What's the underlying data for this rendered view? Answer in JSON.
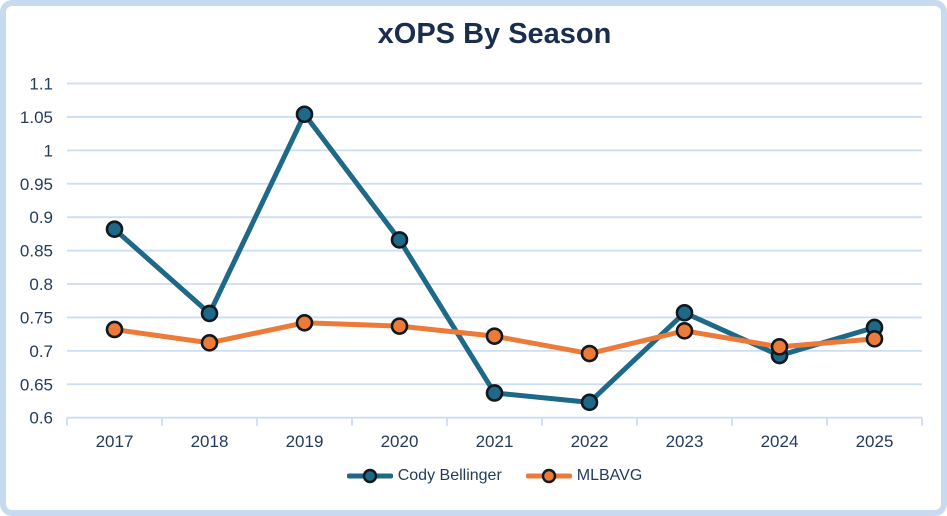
{
  "chart_data": {
    "type": "line",
    "title": "xOPS By Season",
    "categories": [
      "2017",
      "2018",
      "2019",
      "2020",
      "2021",
      "2022",
      "2023",
      "2024",
      "2025"
    ],
    "series": [
      {
        "name": "Cody Bellinger",
        "color": "#1e6888",
        "values": [
          0.882,
          0.756,
          1.054,
          0.866,
          0.637,
          0.623,
          0.757,
          0.693,
          0.735
        ]
      },
      {
        "name": "MLBAVG",
        "color": "#ec7a38",
        "values": [
          0.732,
          0.712,
          0.742,
          0.737,
          0.722,
          0.696,
          0.73,
          0.706,
          0.718
        ]
      }
    ],
    "ylim": [
      0.6,
      1.1
    ],
    "y_tick_labels": [
      "1.1",
      "1.05",
      "1",
      "0.95",
      "0.9",
      "0.85",
      "0.8",
      "0.75",
      "0.7",
      "0.65",
      "0.6"
    ],
    "y_tick_values": [
      1.1,
      1.05,
      1.0,
      0.95,
      0.9,
      0.85,
      0.8,
      0.75,
      0.7,
      0.65,
      0.6
    ],
    "grid": true,
    "legend_position": "bottom",
    "colors": {
      "marker_outline": "#101820",
      "gridline": "#ccdef2",
      "axis_text": "#243c5c",
      "title_text": "#1b2d4f",
      "card_border": "#c7daf0"
    }
  }
}
